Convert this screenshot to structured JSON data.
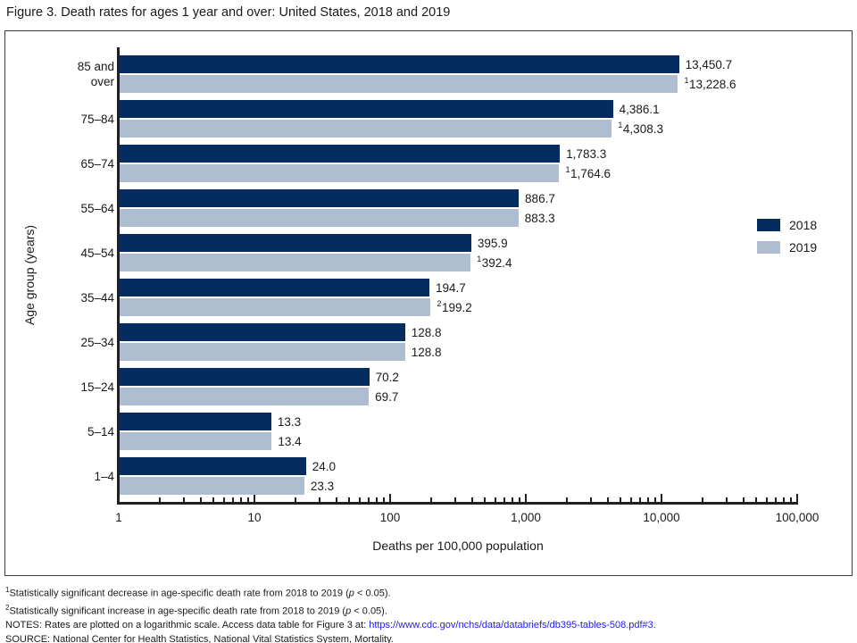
{
  "page": {
    "title": "Figure 3. Death rates for ages 1 year and over: United States, 2018 and 2019"
  },
  "chart_data": {
    "type": "bar",
    "orientation": "horizontal",
    "x_scale": "log10",
    "x_range": [
      1,
      100000
    ],
    "x_tick_values": [
      1,
      10,
      100,
      1000,
      10000,
      100000
    ],
    "x_tick_labels": [
      "1",
      "10",
      "100",
      "1,000",
      "10,000",
      "100,000"
    ],
    "xlabel": "Deaths per 100,000 population",
    "ylabel": "Age group (years)",
    "grid": "off",
    "legend_position": "right",
    "categories": [
      "85 and\nover",
      "75–84",
      "65–74",
      "55–64",
      "45–54",
      "35–44",
      "25–34",
      "15–24",
      "5–14",
      "1–4"
    ],
    "series": [
      {
        "name": "2018",
        "color": "#052c5e",
        "values": [
          13450.7,
          4386.1,
          1783.3,
          886.7,
          395.9,
          194.7,
          128.8,
          70.2,
          13.3,
          24.0
        ],
        "labels": [
          "13,450.7",
          "4,386.1",
          "1,783.3",
          "886.7",
          "395.9",
          "194.7",
          "128.8",
          "70.2",
          "13.3",
          "24.0"
        ],
        "label_superscripts": [
          "",
          "",
          "",
          "",
          "",
          "",
          "",
          "",
          "",
          ""
        ]
      },
      {
        "name": "2019",
        "color": "#aebdcf",
        "values": [
          13228.6,
          4308.3,
          1764.6,
          883.3,
          392.4,
          199.2,
          128.8,
          69.7,
          13.4,
          23.3
        ],
        "labels": [
          "13,228.6",
          "4,308.3",
          "1,764.6",
          "883.3",
          "392.4",
          "199.2",
          "128.8",
          "69.7",
          "13.4",
          "23.3"
        ],
        "label_superscripts": [
          "1",
          "1",
          "1",
          "",
          "1",
          "2",
          "",
          "",
          "",
          ""
        ]
      }
    ]
  },
  "footnotes": {
    "fn1": {
      "sup": "1",
      "before": "Statistically significant decrease in age-specific death rate from 2018 to 2019 (",
      "italic": "p",
      "after": " < 0.05)."
    },
    "fn2": {
      "sup": "2",
      "before": "Statistically significant increase in age-specific death rate from 2018 to 2019 (",
      "italic": "p",
      "after": " < 0.05)."
    },
    "notes": {
      "before": "NOTES: Rates are plotted on a logarithmic scale. Access data table for Figure 3 at: ",
      "link": "https://www.cdc.gov/nchs/data/databriefs/db395-tables-508.pdf#3."
    },
    "source": "SOURCE: National Center for Health Statistics, National Vital Statistics System, Mortality."
  }
}
